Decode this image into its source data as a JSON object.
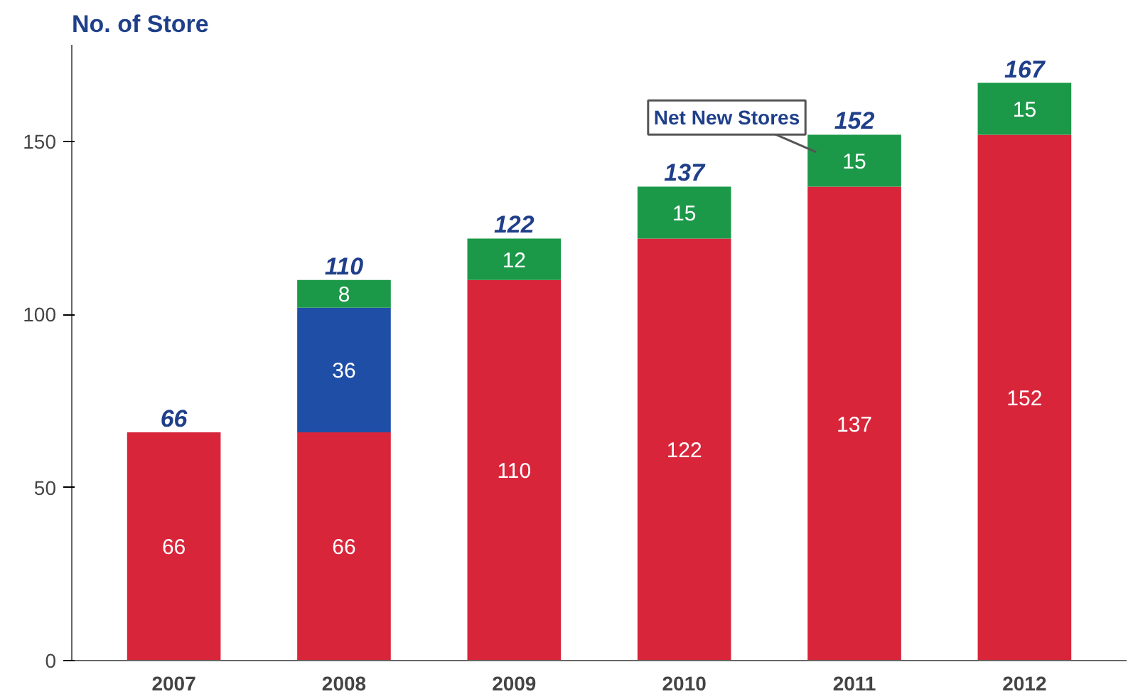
{
  "chart_data": {
    "type": "bar",
    "title": "No. of Store",
    "stacked": true,
    "data_labels": true,
    "categories": [
      "2007",
      "2008",
      "2009",
      "2010",
      "2011",
      "2012"
    ],
    "series": [
      {
        "color": "#d8253a",
        "values": [
          66,
          66,
          110,
          122,
          137,
          152
        ]
      },
      {
        "color": "#1f4ea6",
        "values": [
          null,
          36,
          null,
          null,
          null,
          null
        ]
      },
      {
        "color": "#1b9848",
        "values": [
          null,
          8,
          12,
          15,
          15,
          15
        ]
      }
    ],
    "totals": [
      "66",
      "110",
      "122",
      "137",
      "152",
      "167"
    ],
    "ylim": [
      0,
      178
    ],
    "yticks": [
      0,
      50,
      100,
      150
    ],
    "grid": false,
    "annotations": [
      {
        "text": "Net New Stores",
        "x": "2011",
        "y": 150
      }
    ]
  }
}
